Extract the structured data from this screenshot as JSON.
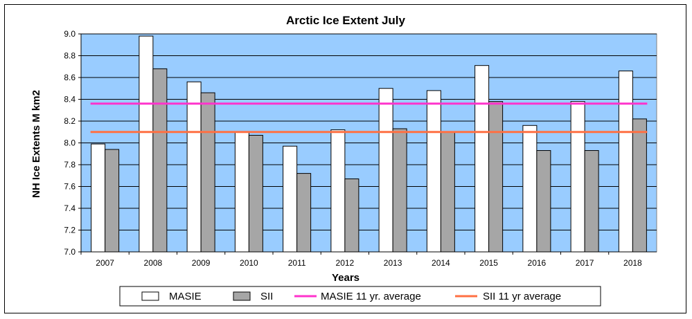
{
  "chart_data": {
    "type": "bar",
    "title": "Arctic Ice Extent July",
    "xlabel": "Years",
    "ylabel": "NH Ice Extents M km2",
    "ylim": [
      7.0,
      9.0
    ],
    "yticks": [
      "7.0",
      "7.2",
      "7.4",
      "7.6",
      "7.8",
      "8.0",
      "8.2",
      "8.4",
      "8.6",
      "8.8",
      "9.0"
    ],
    "grid": true,
    "legend_position": "bottom",
    "categories": [
      "2007",
      "2008",
      "2009",
      "2010",
      "2011",
      "2012",
      "2013",
      "2014",
      "2015",
      "2016",
      "2017",
      "2018"
    ],
    "series": [
      {
        "name": "MASIE",
        "color": "#ffffff",
        "values": [
          7.99,
          8.98,
          8.56,
          8.1,
          7.97,
          8.12,
          8.5,
          8.48,
          8.71,
          8.16,
          8.38,
          8.66
        ]
      },
      {
        "name": "SII",
        "color": "#a6a6a6",
        "values": [
          7.94,
          8.68,
          8.46,
          8.07,
          7.72,
          7.67,
          8.13,
          8.1,
          8.38,
          7.93,
          7.93,
          8.22
        ]
      }
    ],
    "reference_lines": [
      {
        "name": "MASIE 11 yr. average",
        "value": 8.36,
        "color": "#ff33cc"
      },
      {
        "name": "SII 11 yr average",
        "value": 8.1,
        "color": "#ff7043"
      }
    ],
    "plot_background": "#99ccff"
  }
}
